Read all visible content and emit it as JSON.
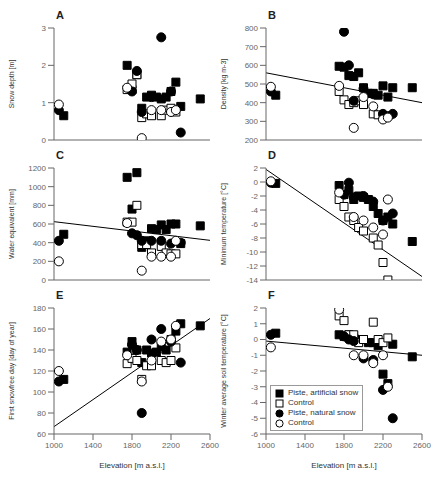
{
  "chart_data": [
    {
      "type": "scatter",
      "title": "A",
      "ylabel": "Snow depth [m]",
      "xlim": [
        1000,
        2600
      ],
      "xticks": [
        1000,
        1400,
        1800,
        2200,
        2600
      ],
      "ylim": [
        0,
        3
      ],
      "yticks": [
        0,
        1,
        2,
        3
      ],
      "tick_labels": "y",
      "series": [
        {
          "marker": "square",
          "color": "#000000",
          "x": [
            1100,
            1750,
            1800,
            1850,
            1900,
            1950,
            2000,
            2050,
            2100,
            2150,
            2200,
            2250,
            2300,
            2500
          ],
          "values": [
            0.65,
            2.0,
            1.35,
            1.75,
            0.85,
            1.15,
            1.2,
            1.15,
            1.1,
            1.15,
            1.3,
            1.55,
            0.9,
            1.1
          ]
        },
        {
          "marker": "open_square",
          "color": "#000000",
          "x": [
            1750,
            1800,
            1850,
            1900,
            1950,
            2000,
            2100,
            2150,
            2200,
            2250
          ],
          "values": [
            1.35,
            1.5,
            1.75,
            0.6,
            0.7,
            0.65,
            0.65,
            0.8,
            0.85,
            0.75
          ]
        },
        {
          "marker": "circle",
          "color": "#000000",
          "x": [
            1050,
            1800,
            1850,
            1900,
            2000,
            2100,
            2200,
            2300
          ],
          "values": [
            0.8,
            1.3,
            1.85,
            0.75,
            1.15,
            2.75,
            1.3,
            0.2
          ]
        },
        {
          "marker": "open_circle",
          "color": "#000000",
          "x": [
            1050,
            1750,
            1900,
            2000,
            2100,
            2200,
            2250
          ],
          "values": [
            0.95,
            1.4,
            0.05,
            0.8,
            0.8,
            0.75,
            0.8
          ]
        }
      ]
    },
    {
      "type": "scatter",
      "title": "B",
      "ylabel": "Density [kg m-3]",
      "xlim": [
        1000,
        2600
      ],
      "xticks": [
        1000,
        1400,
        1800,
        2200,
        2600
      ],
      "ylim": [
        200,
        800
      ],
      "yticks": [
        200,
        300,
        400,
        500,
        600,
        700,
        800
      ],
      "tick_labels": "y",
      "series": [
        {
          "marker": "square",
          "color": "#000000",
          "x": [
            1100,
            1750,
            1800,
            1850,
            1900,
            1950,
            2000,
            2050,
            2100,
            2150,
            2200,
            2250,
            2300,
            2500
          ],
          "values": [
            440,
            595,
            590,
            545,
            540,
            560,
            480,
            450,
            450,
            440,
            490,
            430,
            480,
            480
          ]
        },
        {
          "marker": "open_square",
          "color": "#000000",
          "x": [
            1750,
            1800,
            1850,
            1900,
            1950,
            2000,
            2100,
            2150,
            2200,
            2250
          ],
          "values": [
            460,
            415,
            390,
            400,
            410,
            390,
            340,
            335,
            330,
            330
          ]
        },
        {
          "marker": "circle",
          "color": "#000000",
          "x": [
            1050,
            1800,
            1850,
            1900,
            2000,
            2100,
            2200,
            2300
          ],
          "values": [
            460,
            780,
            600,
            410,
            475,
            445,
            340,
            340
          ]
        },
        {
          "marker": "open_circle",
          "color": "#000000",
          "x": [
            1050,
            1750,
            1900,
            2000,
            2100,
            2200,
            2250
          ],
          "values": [
            485,
            490,
            265,
            430,
            380,
            310,
            320
          ]
        },
        {
          "type": "line",
          "color": "#000000",
          "x": [
            1000,
            2600
          ],
          "values": [
            560,
            400
          ]
        }
      ]
    },
    {
      "type": "scatter",
      "title": "C",
      "ylabel": "Water equivalent [mm]",
      "xlim": [
        1000,
        2600
      ],
      "xticks": [
        1000,
        1400,
        1800,
        2200,
        2600
      ],
      "ylim": [
        0,
        1200
      ],
      "yticks": [
        0,
        200,
        400,
        600,
        800,
        1000,
        1200
      ],
      "tick_labels": "y",
      "series": [
        {
          "marker": "square",
          "color": "#000000",
          "x": [
            1100,
            1750,
            1800,
            1850,
            1900,
            1950,
            2000,
            2050,
            2100,
            2150,
            2200,
            2250,
            2300,
            2500
          ],
          "values": [
            490,
            1100,
            760,
            1150,
            350,
            420,
            550,
            540,
            590,
            540,
            600,
            600,
            390,
            580
          ]
        },
        {
          "marker": "open_square",
          "color": "#000000",
          "x": [
            1750,
            1800,
            1850,
            1900,
            1950,
            2000,
            2100,
            2150,
            2200,
            2250
          ],
          "values": [
            620,
            620,
            800,
            380,
            380,
            290,
            360,
            290,
            280,
            280
          ]
        },
        {
          "marker": "circle",
          "color": "#000000",
          "x": [
            1050,
            1800,
            1850,
            1900,
            2000,
            2100,
            2200,
            2300
          ],
          "values": [
            420,
            500,
            480,
            420,
            420,
            420,
            390,
            400
          ]
        },
        {
          "marker": "open_circle",
          "color": "#000000",
          "x": [
            1050,
            1750,
            1900,
            2000,
            2100,
            2200,
            2250
          ],
          "values": [
            200,
            610,
            100,
            250,
            250,
            250,
            420
          ]
        },
        {
          "type": "line",
          "color": "#000000",
          "x": [
            1000,
            2600
          ],
          "values": [
            625,
            425
          ]
        }
      ]
    },
    {
      "type": "scatter",
      "title": "D",
      "ylabel": "Minimum temperature [°C]",
      "xlim": [
        1000,
        2600
      ],
      "xticks": [
        1000,
        1400,
        1800,
        2200,
        2600
      ],
      "ylim": [
        -14,
        2
      ],
      "yticks": [
        -14,
        -12,
        -10,
        -8,
        -6,
        -4,
        -2,
        0,
        2
      ],
      "tick_labels": "y",
      "series": [
        {
          "marker": "square",
          "color": "#000000",
          "x": [
            1100,
            1750,
            1800,
            1850,
            1900,
            1950,
            2000,
            2050,
            2100,
            2150,
            2200,
            2250,
            2300,
            2500
          ],
          "values": [
            -0.2,
            -0.5,
            -1.8,
            -1.2,
            -2.5,
            -2.0,
            -2.2,
            -2.5,
            -3.5,
            -4.5,
            -5.5,
            -5.0,
            -6.0,
            -8.5
          ]
        },
        {
          "marker": "open_square",
          "color": "#000000",
          "x": [
            1750,
            1800,
            1850,
            1900,
            1950,
            2000,
            2100,
            2150,
            2200,
            2250
          ],
          "values": [
            -2.5,
            -3.5,
            -5.0,
            -5.5,
            -6.5,
            -7.0,
            -8.0,
            -9.0,
            -11.5,
            -14.0
          ]
        },
        {
          "marker": "circle",
          "color": "#000000",
          "x": [
            1050,
            1800,
            1850,
            1900,
            2000,
            2100,
            2200,
            2300
          ],
          "values": [
            -0.1,
            -1.8,
            -0.1,
            -2.2,
            -2.0,
            -2.8,
            -5.5,
            -4.5
          ]
        },
        {
          "marker": "open_circle",
          "color": "#000000",
          "x": [
            1050,
            1750,
            1900,
            2000,
            2100,
            2200,
            2250
          ],
          "values": [
            0.1,
            -1.5,
            -5.0,
            -5.5,
            -6.5,
            -7.5,
            -2.5
          ]
        },
        {
          "type": "line",
          "color": "#000000",
          "x": [
            1000,
            2600
          ],
          "values": [
            1.8,
            -13.5
          ]
        }
      ]
    },
    {
      "type": "scatter",
      "title": "E",
      "ylabel": "First snowfree day [day of year]",
      "xlabel": "Elevation [m a.s.l.]",
      "xlim": [
        1000,
        2600
      ],
      "xticks": [
        1000,
        1400,
        1800,
        2200,
        2600
      ],
      "ylim": [
        60,
        180
      ],
      "yticks": [
        60,
        80,
        100,
        120,
        140,
        160,
        180
      ],
      "series": [
        {
          "marker": "square",
          "color": "#000000",
          "x": [
            1100,
            1750,
            1800,
            1850,
            1900,
            1950,
            2000,
            2050,
            2100,
            2150,
            2200,
            2250,
            2300,
            2500
          ],
          "values": [
            112,
            138,
            148,
            140,
            128,
            140,
            137,
            138,
            143,
            140,
            150,
            158,
            165,
            163
          ]
        },
        {
          "marker": "open_square",
          "color": "#000000",
          "x": [
            1750,
            1800,
            1850,
            1900,
            1950,
            2000,
            2100,
            2150,
            2200,
            2250
          ],
          "values": [
            127,
            132,
            130,
            112,
            125,
            125,
            130,
            128,
            130,
            142
          ]
        },
        {
          "marker": "circle",
          "color": "#000000",
          "x": [
            1050,
            1800,
            1850,
            1900,
            2000,
            2100,
            2200,
            2300
          ],
          "values": [
            110,
            145,
            140,
            80,
            150,
            160,
            148,
            128
          ]
        },
        {
          "marker": "open_circle",
          "color": "#000000",
          "x": [
            1050,
            1750,
            1900,
            2000,
            2100,
            2200,
            2250
          ],
          "values": [
            120,
            135,
            110,
            130,
            148,
            150,
            163
          ]
        },
        {
          "type": "line",
          "color": "#000000",
          "x": [
            1000,
            2600
          ],
          "values": [
            67,
            170
          ]
        }
      ]
    },
    {
      "type": "scatter",
      "title": "F",
      "ylabel": "Winter average soil temperature [°C]",
      "xlabel": "Elevation [m a.s.l.]",
      "xlim": [
        1000,
        2600
      ],
      "xticks": [
        1000,
        1400,
        1800,
        2200,
        2600
      ],
      "ylim": [
        -6,
        2
      ],
      "yticks": [
        -6,
        -5,
        -4,
        -3,
        -2,
        -1,
        0,
        1,
        2
      ],
      "legend": "lower left",
      "series": [
        {
          "name": "Piste, artificial snow",
          "marker": "square",
          "color": "#000000",
          "x": [
            1100,
            1750,
            1800,
            1850,
            1900,
            1950,
            2000,
            2050,
            2100,
            2150,
            2200,
            2250,
            2300,
            2500
          ],
          "values": [
            0.4,
            0.3,
            0.2,
            0.3,
            0.1,
            0.0,
            0.0,
            -0.2,
            -0.2,
            -0.4,
            -2.2,
            -2.8,
            -0.3,
            -1.1
          ]
        },
        {
          "name": "Control",
          "marker": "open_square",
          "color": "#000000",
          "x": [
            1750,
            1800,
            1850,
            1900,
            1950,
            2000,
            2100,
            2150,
            2200,
            2250
          ],
          "values": [
            1.5,
            1.2,
            0.3,
            0.3,
            -0.2,
            0.0,
            1.1,
            0.0,
            -0.2,
            0.1
          ]
        },
        {
          "name": "Piste, natural snow",
          "marker": "circle",
          "color": "#000000",
          "x": [
            1050,
            1800,
            1850,
            1900,
            2000,
            2100,
            2200,
            2300
          ],
          "values": [
            0.3,
            0.2,
            0.0,
            -0.1,
            -1.2,
            -1.3,
            -3.2,
            -5.0
          ]
        },
        {
          "name": "Control",
          "marker": "open_circle",
          "color": "#000000",
          "x": [
            1050,
            1750,
            1900,
            2000,
            2100,
            2200,
            2250
          ],
          "values": [
            -0.5,
            1.9,
            -1.0,
            -1.0,
            -1.5,
            -1.0,
            -3.0
          ]
        },
        {
          "type": "line",
          "color": "#000000",
          "x": [
            1000,
            2600
          ],
          "values": [
            -0.1,
            -1.0
          ]
        }
      ]
    }
  ]
}
